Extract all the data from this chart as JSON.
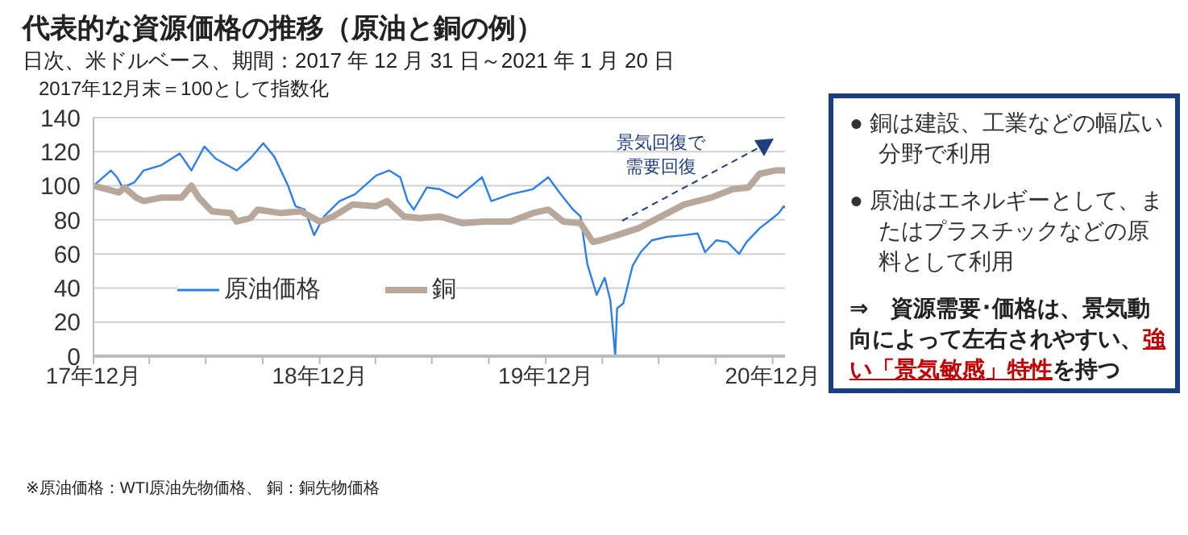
{
  "chart_data": {
    "type": "line",
    "title": "代表的な資源価格の推移（原油と銅の例）",
    "subtitle": "日次、米ドルベース、期間：2017 年 12 月 31 日～2021 年 1 月 20 日",
    "ylabel": "2017年12月末＝100として指数化",
    "series": [
      {
        "name": "原油価格",
        "color": "#2e7fe6",
        "x": [
          "2017-12-31",
          "2018-01-28",
          "2018-02-07",
          "2018-02-16",
          "2018-03-07",
          "2018-03-22",
          "2018-04-19",
          "2018-05-19",
          "2018-06-07",
          "2018-06-28",
          "2018-07-16",
          "2018-08-19",
          "2018-09-10",
          "2018-10-01",
          "2018-10-19",
          "2018-11-10",
          "2018-11-22",
          "2018-12-07",
          "2018-12-22",
          "2019-01-07",
          "2019-02-01",
          "2019-02-26",
          "2019-04-01",
          "2019-04-22",
          "2019-05-10",
          "2019-05-22",
          "2019-06-01",
          "2019-06-22",
          "2019-07-13",
          "2019-08-10",
          "2019-09-19",
          "2019-10-04",
          "2019-11-04",
          "2019-12-10",
          "2020-01-04",
          "2020-01-22",
          "2020-02-13",
          "2020-02-25",
          "2020-03-07",
          "2020-03-22",
          "2020-04-04",
          "2020-04-13",
          "2020-04-21",
          "2020-04-24",
          "2020-05-04",
          "2020-05-19",
          "2020-06-01",
          "2020-06-19",
          "2020-07-13",
          "2020-08-10",
          "2020-09-01",
          "2020-09-13",
          "2020-10-01",
          "2020-10-19",
          "2020-11-07",
          "2020-11-19",
          "2020-12-10",
          "2020-12-31",
          "2021-01-10",
          "2021-01-18",
          "2021-01-20"
        ],
        "values": [
          100,
          109,
          105,
          99,
          102,
          109,
          112,
          119,
          109,
          123,
          116,
          109,
          116,
          125,
          117,
          100,
          88,
          86,
          71,
          82,
          91,
          95,
          106,
          109,
          105,
          91,
          86,
          99,
          98,
          93,
          105,
          91,
          95,
          98,
          105,
          96,
          86,
          82,
          54,
          36,
          46,
          33,
          0,
          28,
          31,
          53,
          61,
          68,
          70,
          71,
          72,
          61,
          68,
          67,
          60,
          67,
          75,
          81,
          84,
          88,
          87
        ]
      },
      {
        "name": "銅",
        "color": "#b8a89c",
        "x": [
          "2017-12-31",
          "2018-01-22",
          "2018-02-10",
          "2018-02-19",
          "2018-03-10",
          "2018-03-22",
          "2018-04-19",
          "2018-05-22",
          "2018-06-07",
          "2018-06-19",
          "2018-07-10",
          "2018-08-10",
          "2018-08-19",
          "2018-09-10",
          "2018-09-22",
          "2018-10-28",
          "2018-12-01",
          "2018-12-31",
          "2019-01-22",
          "2019-02-22",
          "2019-04-01",
          "2019-04-19",
          "2019-05-16",
          "2019-06-10",
          "2019-07-13",
          "2019-08-19",
          "2019-09-22",
          "2019-11-04",
          "2019-12-10",
          "2020-01-04",
          "2020-01-28",
          "2020-02-25",
          "2020-03-16",
          "2020-03-28",
          "2020-04-24",
          "2020-05-28",
          "2020-07-04",
          "2020-08-10",
          "2020-09-22",
          "2020-10-28",
          "2020-11-22",
          "2020-12-10",
          "2021-01-04",
          "2021-01-20"
        ],
        "values": [
          100,
          98,
          96,
          99,
          93,
          91,
          93,
          93,
          100,
          93,
          85,
          84,
          79,
          81,
          86,
          84,
          85,
          79,
          82,
          89,
          88,
          91,
          82,
          81,
          82,
          78,
          79,
          79,
          84,
          86,
          79,
          78,
          67,
          68,
          71,
          75,
          82,
          89,
          93,
          98,
          99,
          107,
          109,
          109
        ]
      }
    ],
    "xlim": [
      "2017-12-31",
      "2021-01-20"
    ],
    "xticks": [
      {
        "value": "2017-12-31",
        "label": "17年12月"
      },
      {
        "value": "2018-03-31",
        "label": null
      },
      {
        "value": "2018-06-30",
        "label": null
      },
      {
        "value": "2018-09-30",
        "label": null
      },
      {
        "value": "2018-12-31",
        "label": "18年12月"
      },
      {
        "value": "2019-03-31",
        "label": null
      },
      {
        "value": "2019-06-30",
        "label": null
      },
      {
        "value": "2019-09-30",
        "label": null
      },
      {
        "value": "2019-12-31",
        "label": "19年12月"
      },
      {
        "value": "2020-03-31",
        "label": null
      },
      {
        "value": "2020-06-30",
        "label": null
      },
      {
        "value": "2020-09-30",
        "label": null
      },
      {
        "value": "2020-12-31",
        "label": "20年12月"
      }
    ],
    "ylim": [
      0,
      140
    ],
    "yticks": [
      0,
      20,
      40,
      60,
      80,
      100,
      120,
      140
    ],
    "grid": "y",
    "legend": "center",
    "annotations": [
      "景気回復で",
      "需要回復",
      "● 銅は建設、工業などの幅広い分野で利用",
      "● 原油はエネルギーとして、またはプラスチックなどの原料として利用",
      "⇒　資源需要･価格は、景気動向によって左右されやすい、",
      "強い「景気敏感」特性",
      "を持つ",
      "※原油価格：WTI原油先物価格、 銅：銅先物価格"
    ]
  }
}
